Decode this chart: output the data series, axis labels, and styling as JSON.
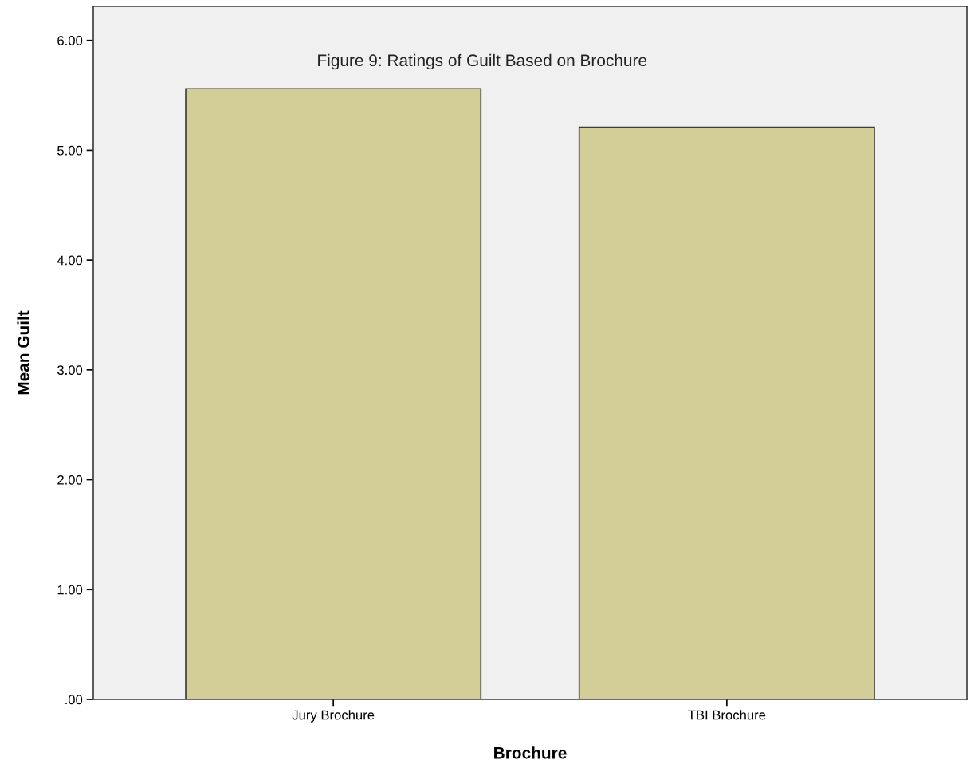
{
  "chart_data": {
    "type": "bar",
    "title": "Figure 9: Ratings of Guilt Based on Brochure",
    "xlabel": "Brochure",
    "ylabel": "Mean Guilt",
    "categories": [
      "Jury Brochure",
      "TBI Brochure"
    ],
    "values": [
      5.56,
      5.21
    ],
    "color": "#d3ce97",
    "ylim": [
      0,
      6.31
    ],
    "yticks": [
      {
        "value": 0,
        "label": ".00"
      },
      {
        "value": 1,
        "label": "1.00"
      },
      {
        "value": 2,
        "label": "2.00"
      },
      {
        "value": 3,
        "label": "3.00"
      },
      {
        "value": 4,
        "label": "4.00"
      },
      {
        "value": 5,
        "label": "5.00"
      },
      {
        "value": 6,
        "label": "6.00"
      }
    ],
    "grid": false,
    "legend": false
  }
}
